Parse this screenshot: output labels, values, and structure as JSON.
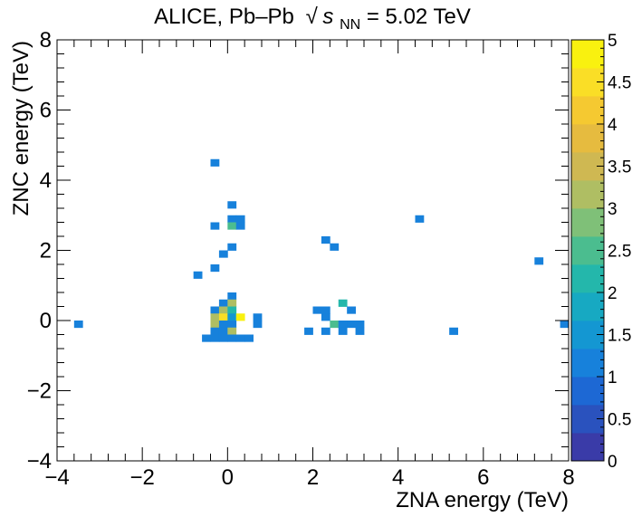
{
  "chart_data": {
    "type": "heatmap",
    "title": {
      "prefix": "ALICE, Pb–Pb",
      "sqrt_symbol": "√",
      "s": "s",
      "sub": "NN",
      "suffix": " = 5.02 TeV"
    },
    "xlabel": "ZNA energy (TeV)",
    "ylabel": "ZNC energy (TeV)",
    "xlim": [
      -4,
      8
    ],
    "ylim": [
      -4,
      8
    ],
    "bin_width": 0.2,
    "bin_height": 0.2,
    "x_ticks": [
      "−4",
      "−2",
      "0",
      "2",
      "4",
      "6",
      "8"
    ],
    "y_ticks": [
      "−4",
      "−2",
      "0",
      "2",
      "4",
      "6",
      "8"
    ],
    "colorbar": {
      "zlim": [
        0,
        5
      ],
      "ticks": [
        "0",
        "0.5",
        "1",
        "1.5",
        "2",
        "2.5",
        "3",
        "3.5",
        "4",
        "4.5",
        "5"
      ]
    },
    "cells": [
      {
        "x": -0.3,
        "y": 4.5,
        "z": 1
      },
      {
        "x": 0.1,
        "y": 3.3,
        "z": 1
      },
      {
        "x": 0.1,
        "y": 2.9,
        "z": 1
      },
      {
        "x": 0.3,
        "y": 2.9,
        "z": 1
      },
      {
        "x": -0.3,
        "y": 2.7,
        "z": 1
      },
      {
        "x": 0.1,
        "y": 2.7,
        "z": 2.5
      },
      {
        "x": 0.3,
        "y": 2.7,
        "z": 1
      },
      {
        "x": 4.5,
        "y": 2.9,
        "z": 1
      },
      {
        "x": 2.3,
        "y": 2.3,
        "z": 1
      },
      {
        "x": 2.5,
        "y": 2.1,
        "z": 1
      },
      {
        "x": 0.1,
        "y": 2.1,
        "z": 1
      },
      {
        "x": -0.1,
        "y": 1.9,
        "z": 1
      },
      {
        "x": 7.3,
        "y": 1.7,
        "z": 1
      },
      {
        "x": -0.3,
        "y": 1.5,
        "z": 1
      },
      {
        "x": -0.7,
        "y": 1.3,
        "z": 1
      },
      {
        "x": 0.1,
        "y": 0.7,
        "z": 1
      },
      {
        "x": -0.1,
        "y": 0.5,
        "z": 1
      },
      {
        "x": 0.1,
        "y": 0.5,
        "z": 3
      },
      {
        "x": 2.7,
        "y": 0.5,
        "z": 2
      },
      {
        "x": -0.3,
        "y": 0.3,
        "z": 1
      },
      {
        "x": -0.1,
        "y": 0.3,
        "z": 3
      },
      {
        "x": 0.1,
        "y": 0.3,
        "z": 2
      },
      {
        "x": 2.1,
        "y": 0.3,
        "z": 1
      },
      {
        "x": 2.3,
        "y": 0.3,
        "z": 1
      },
      {
        "x": 2.9,
        "y": 0.3,
        "z": 1
      },
      {
        "x": -0.3,
        "y": 0.1,
        "z": 3
      },
      {
        "x": -0.1,
        "y": 0.1,
        "z": 4.5
      },
      {
        "x": 0.1,
        "y": 0.1,
        "z": 1.5
      },
      {
        "x": 0.3,
        "y": 0.1,
        "z": 5
      },
      {
        "x": 0.7,
        "y": 0.1,
        "z": 1
      },
      {
        "x": 2.3,
        "y": 0.1,
        "z": 1
      },
      {
        "x": -3.5,
        "y": -0.1,
        "z": 1
      },
      {
        "x": -0.3,
        "y": -0.1,
        "z": 3
      },
      {
        "x": -0.1,
        "y": -0.1,
        "z": 1
      },
      {
        "x": 0.1,
        "y": -0.1,
        "z": 1
      },
      {
        "x": 0.7,
        "y": -0.1,
        "z": 1
      },
      {
        "x": 2.5,
        "y": -0.1,
        "z": 2.5
      },
      {
        "x": 2.7,
        "y": -0.1,
        "z": 1
      },
      {
        "x": 2.9,
        "y": -0.1,
        "z": 1
      },
      {
        "x": 3.1,
        "y": -0.1,
        "z": 1
      },
      {
        "x": 7.9,
        "y": -0.1,
        "z": 1
      },
      {
        "x": -0.3,
        "y": -0.3,
        "z": 1
      },
      {
        "x": -0.1,
        "y": -0.3,
        "z": 1
      },
      {
        "x": 0.1,
        "y": -0.3,
        "z": 3
      },
      {
        "x": 1.9,
        "y": -0.3,
        "z": 1
      },
      {
        "x": 2.3,
        "y": -0.3,
        "z": 1
      },
      {
        "x": 2.7,
        "y": -0.3,
        "z": 1
      },
      {
        "x": 3.1,
        "y": -0.3,
        "z": 1
      },
      {
        "x": 5.3,
        "y": -0.3,
        "z": 1
      },
      {
        "x": -0.5,
        "y": -0.5,
        "z": 1
      },
      {
        "x": -0.3,
        "y": -0.5,
        "z": 1
      },
      {
        "x": -0.1,
        "y": -0.5,
        "z": 1
      },
      {
        "x": 0.1,
        "y": -0.5,
        "z": 1
      },
      {
        "x": 0.3,
        "y": -0.5,
        "z": 1
      },
      {
        "x": 0.5,
        "y": -0.5,
        "z": 1
      }
    ]
  }
}
